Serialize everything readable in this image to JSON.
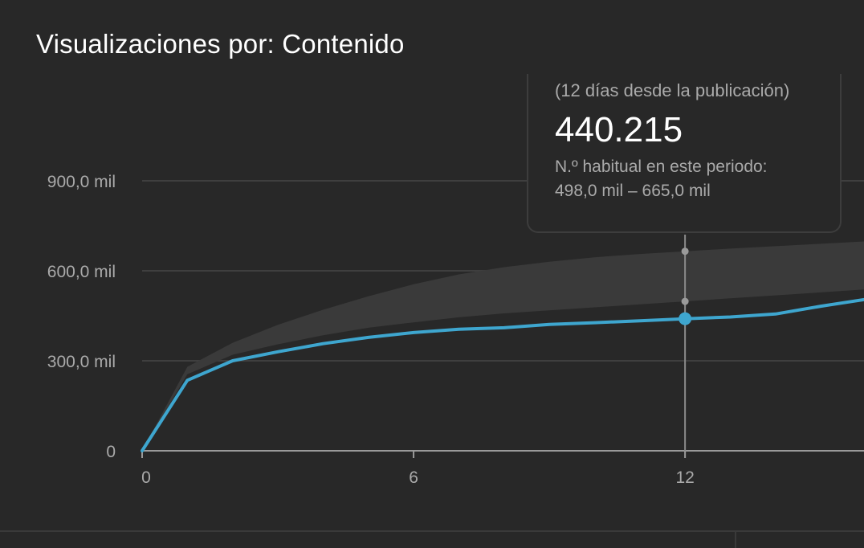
{
  "chart_data": {
    "type": "line",
    "title": "Visualizaciones por: Contenido",
    "xlabel": "",
    "ylabel": "",
    "x_ticks": [
      "0",
      "6",
      "12"
    ],
    "y_ticks": [
      "0",
      "300,0 mil",
      "600,0 mil",
      "900,0 mil"
    ],
    "xlim": [
      0,
      16
    ],
    "ylim": [
      0,
      900000
    ],
    "grid": true,
    "series": [
      {
        "x": [
          0,
          1,
          2,
          3,
          4,
          5,
          6,
          7,
          8,
          9,
          10,
          11,
          12,
          13,
          14,
          15,
          16
        ],
        "values": [
          0,
          235000,
          300000,
          330000,
          357000,
          378000,
          394000,
          405000,
          410000,
          421000,
          427000,
          433000,
          440215,
          446000,
          456000,
          482000,
          505000
        ],
        "color": "#3ea6cf"
      }
    ],
    "typical_range": {
      "x": [
        0,
        1,
        2,
        3,
        4,
        5,
        6,
        7,
        8,
        9,
        10,
        11,
        12,
        13,
        14,
        15,
        16
      ],
      "low": [
        0,
        255000,
        320000,
        355000,
        385000,
        410000,
        428000,
        445000,
        458000,
        468000,
        478000,
        488000,
        498000,
        508000,
        518000,
        528000,
        538000
      ],
      "high": [
        0,
        280000,
        360000,
        420000,
        470000,
        515000,
        555000,
        588000,
        612000,
        630000,
        645000,
        656000,
        665000,
        674000,
        682000,
        690000,
        698000
      ],
      "color": "#3a3a3a"
    },
    "highlight": {
      "x": 12,
      "value": 440215,
      "subtitle": "(12 días desde la publicación)",
      "value_label": "440.215",
      "range_label": "N.º habitual en este periodo:",
      "range_text": "498,0 mil – 665,0 mil",
      "range_low": 498000,
      "range_high": 665000
    }
  }
}
